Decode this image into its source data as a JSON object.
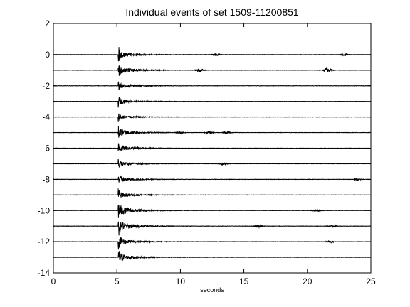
{
  "chart_data": {
    "type": "line",
    "title": "Individual events of set 1509-11200851",
    "xlabel": "seconds",
    "ylabel": "",
    "xlim": [
      0,
      25
    ],
    "ylim": [
      -14,
      2
    ],
    "x_ticks": [
      0,
      5,
      10,
      15,
      20,
      25
    ],
    "y_ticks": [
      2,
      0,
      -2,
      -4,
      -6,
      -8,
      -10,
      -12,
      -14
    ],
    "x_tick_labels": [
      "0",
      "5",
      "10",
      "15",
      "20",
      "25"
    ],
    "y_tick_labels": [
      "2",
      "0",
      "-2",
      "-4",
      "-6",
      "-8",
      "-10",
      "-12",
      "-14"
    ],
    "grid": false,
    "legend": "none",
    "line_color": "#000000",
    "trace_range_seconds": [
      0,
      25
    ],
    "onset_seconds": 5.1,
    "series": [
      {
        "offset": 0,
        "peak": 0.55,
        "coda": 0.18,
        "bursts": [
          [
            12.8,
            0.08
          ],
          [
            23.0,
            0.06
          ]
        ]
      },
      {
        "offset": -1,
        "peak": 0.3,
        "coda": 0.22,
        "bursts": [
          [
            11.5,
            0.1
          ],
          [
            21.6,
            0.18
          ]
        ]
      },
      {
        "offset": -2,
        "peak": 0.25,
        "coda": 0.15,
        "bursts": []
      },
      {
        "offset": -3,
        "peak": 0.3,
        "coda": 0.12,
        "bursts": []
      },
      {
        "offset": -4,
        "peak": 0.25,
        "coda": 0.12,
        "bursts": []
      },
      {
        "offset": -5,
        "peak": 0.3,
        "coda": 0.22,
        "bursts": [
          [
            10.0,
            0.06
          ],
          [
            12.3,
            0.08
          ],
          [
            13.7,
            0.06
          ]
        ]
      },
      {
        "offset": -6,
        "peak": 0.35,
        "coda": 0.15,
        "bursts": []
      },
      {
        "offset": -7,
        "peak": 0.25,
        "coda": 0.12,
        "bursts": [
          [
            13.4,
            0.06
          ]
        ]
      },
      {
        "offset": -8,
        "peak": 0.3,
        "coda": 0.15,
        "bursts": [
          [
            24.0,
            0.05
          ]
        ]
      },
      {
        "offset": -9,
        "peak": 0.3,
        "coda": 0.15,
        "bursts": []
      },
      {
        "offset": -10,
        "peak": 0.38,
        "coda": 0.28,
        "bursts": [
          [
            20.7,
            0.06
          ]
        ]
      },
      {
        "offset": -11,
        "peak": 0.5,
        "coda": 0.3,
        "bursts": [
          [
            16.2,
            0.08
          ],
          [
            22.0,
            0.06
          ]
        ]
      },
      {
        "offset": -12,
        "peak": 0.4,
        "coda": 0.2,
        "bursts": [
          [
            21.8,
            0.06
          ]
        ]
      },
      {
        "offset": -13,
        "peak": 0.45,
        "coda": 0.2,
        "bursts": []
      }
    ]
  }
}
